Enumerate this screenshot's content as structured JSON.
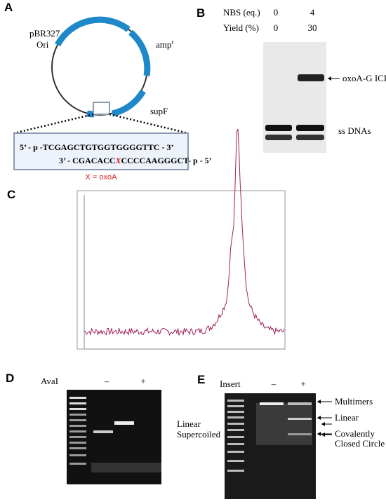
{
  "panel_a": {
    "label": "A",
    "plasmid": "pBR327",
    "ori": "Ori",
    "amp": "amp",
    "amp_sup": "r",
    "supf": "supF",
    "top_strand": "5’ - p -TCGAGCTGTGGTGGGGTTC - 3’",
    "bottom_strand": [
      "3’ - CGACACC",
      "X",
      "CCCCAAGGGCT- p - 5’"
    ],
    "legend": "X = oxoA"
  },
  "panel_b": {
    "label": "B",
    "rows": [
      {
        "label": "NBS (eq.)",
        "values": [
          "0",
          "4"
        ]
      },
      {
        "label": "Yield (%)",
        "values": [
          "0",
          "30"
        ]
      }
    ],
    "band_labels": [
      "oxoA-G ICL",
      "ss DNAs"
    ]
  },
  "panel_c": {
    "label": "C"
  },
  "panel_d": {
    "label": "D",
    "header": "AvaI",
    "lanes": [
      "–",
      "+"
    ],
    "band_labels": [
      "Linear",
      "Supercoiled"
    ]
  },
  "panel_e": {
    "label": "E",
    "header": "Insert",
    "lanes": [
      "–",
      "+"
    ],
    "band_labels": [
      "Multimers",
      "Linear",
      "Covalently",
      "Closed Circle"
    ]
  }
}
